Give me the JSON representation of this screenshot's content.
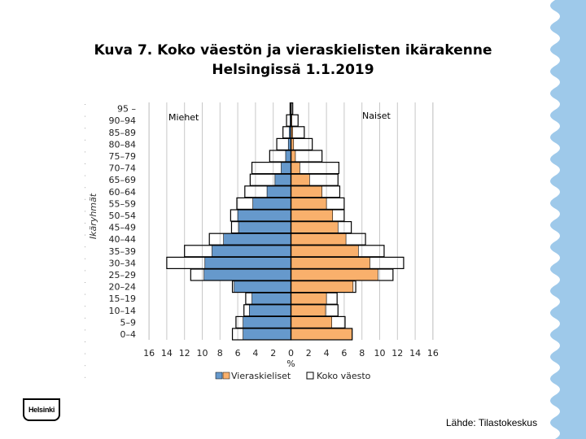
{
  "slide": {
    "title_line1": "Kuva 7. Koko väestön ja vieraskielisten ikärakenne",
    "title_line2": "Helsingissä 1.1.2019",
    "source": "Lähde: Tilastokeskus",
    "logo_text": "Helsinki"
  },
  "colors": {
    "accent": "#9ec9ea",
    "blue": "#6699cc",
    "orange": "#f9b06c",
    "grid": "#c8c8c8"
  },
  "chart_data": {
    "type": "bar",
    "orientation": "horizontal",
    "ylabel": "Ikäryhmät",
    "xlabel": "%",
    "xlim": [
      -16,
      16
    ],
    "xticks": [
      -16,
      -14,
      -12,
      -10,
      -8,
      -6,
      -4,
      -2,
      0,
      2,
      4,
      6,
      8,
      10,
      12,
      14,
      16
    ],
    "xtick_labels": [
      "16",
      "14",
      "12",
      "10",
      "8",
      "6",
      "4",
      "2",
      "0",
      "2",
      "4",
      "6",
      "8",
      "10",
      "12",
      "14",
      "16"
    ],
    "categories": [
      "0–4",
      "5–9",
      "10–14",
      "15–19",
      "20–24",
      "25–29",
      "30–34",
      "35–39",
      "40–44",
      "45–49",
      "50–54",
      "55–59",
      "60–64",
      "65–69",
      "70–74",
      "75–79",
      "80–84",
      "85–89",
      "90–94",
      "95 –"
    ],
    "group_labels": {
      "men": "Miehet",
      "women": "Naiset"
    },
    "legend": [
      "Vieraskieliset",
      "Koko väesto"
    ],
    "legend_position": "bottom",
    "series": [
      {
        "name": "Vieraskieliset Miehet",
        "values": [
          5.4,
          5.4,
          4.7,
          4.4,
          6.4,
          9.8,
          9.7,
          8.9,
          7.6,
          5.9,
          6.0,
          4.3,
          2.7,
          1.8,
          1.1,
          0.6,
          0.3,
          0.2,
          0.1,
          0.05
        ]
      },
      {
        "name": "Vieraskieliset Naiset",
        "values": [
          6.9,
          4.6,
          3.9,
          4.0,
          7.0,
          9.8,
          8.9,
          7.6,
          6.2,
          5.3,
          4.7,
          4.0,
          3.5,
          2.1,
          1.0,
          0.5,
          0.3,
          0.2,
          0.1,
          0.05
        ]
      },
      {
        "name": "Koko väesto Miehet",
        "values": [
          6.6,
          6.2,
          5.3,
          5.1,
          6.6,
          11.3,
          14.0,
          12.0,
          9.2,
          6.7,
          6.8,
          6.1,
          5.2,
          4.6,
          4.4,
          2.4,
          1.6,
          0.9,
          0.5,
          0.1
        ]
      },
      {
        "name": "Koko väesto Naiset",
        "values": [
          6.9,
          6.1,
          5.3,
          5.2,
          7.3,
          11.5,
          12.7,
          10.5,
          8.4,
          6.8,
          6.0,
          6.0,
          5.5,
          5.3,
          5.4,
          3.5,
          2.4,
          1.5,
          0.8,
          0.2
        ]
      }
    ]
  }
}
